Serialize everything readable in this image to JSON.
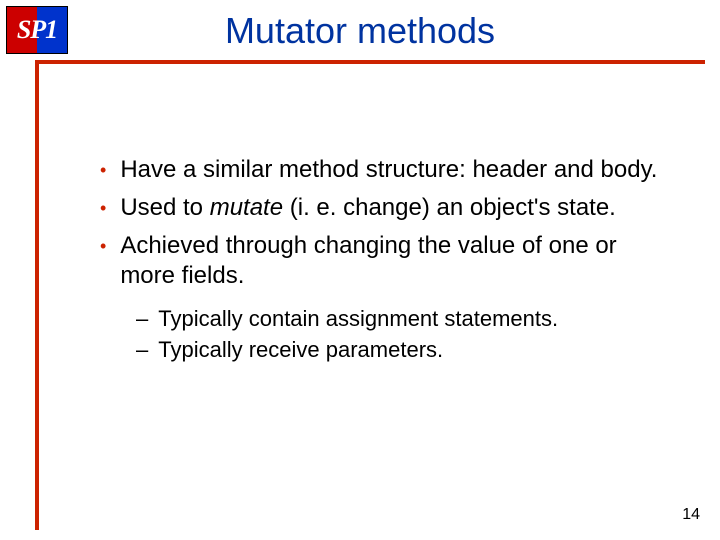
{
  "logo": {
    "text": "SP1"
  },
  "title": "Mutator methods",
  "rule_color": "#cc2200",
  "title_color": "#0033a0",
  "bullets": [
    {
      "level": 1,
      "text": "Have a similar method structure: header and body."
    },
    {
      "level": 1,
      "html": "Used to <em class=\"mutate\">mutate</em> (i. e. change) an object's state."
    },
    {
      "level": 1,
      "text": "Achieved through changing the value of one or more fields."
    },
    {
      "level": 2,
      "text": "Typically contain assignment statements."
    },
    {
      "level": 2,
      "text": "Typically receive parameters."
    }
  ],
  "page_number": "14",
  "fontsize_title": 36,
  "fontsize_l1": 24,
  "fontsize_l2": 22
}
